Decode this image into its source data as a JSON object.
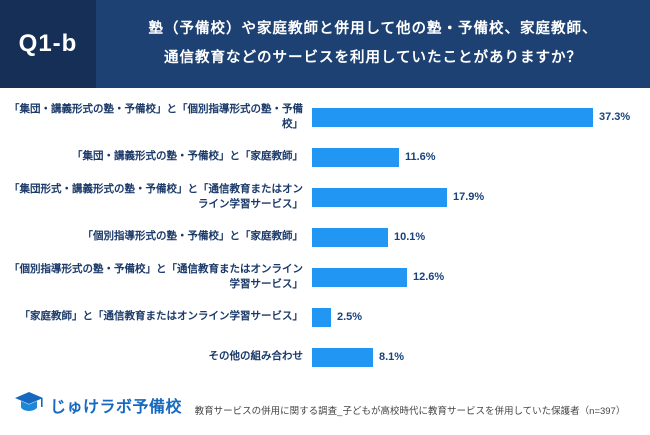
{
  "header": {
    "tag": "Q1-b",
    "question_line1": "塾（予備校）や家庭教師と併用して他の塾・予備校、家庭教師、",
    "question_line2": "通信教育などのサービスを利用していたことがありますか？"
  },
  "chart_data": {
    "type": "bar",
    "orientation": "horizontal",
    "title": "塾（予備校）や家庭教師と併用して他の塾・予備校、家庭教師、通信教育などのサービスを利用していたことがありますか？",
    "categories": [
      "「集団・講義形式の塾・予備校」と「個別指導形式の塾・予備校」",
      "「集団・講義形式の塾・予備校」と「家庭教師」",
      "「集団形式・講義形式の塾・予備校」と「通信教育またはオンライン学習サービス」",
      "「個別指導形式の塾・予備校」と「家庭教師」",
      "「個別指導形式の塾・予備校」と「通信教育またはオンライン学習サービス」",
      "「家庭教師」と「通信教育またはオンライン学習サービス」",
      "その他の組み合わせ"
    ],
    "values": [
      37.3,
      11.6,
      17.9,
      10.1,
      12.6,
      2.5,
      8.1
    ],
    "value_labels": [
      "37.3%",
      "11.6%",
      "17.9%",
      "10.1%",
      "12.6%",
      "2.5%",
      "8.1%"
    ],
    "xlim": [
      0,
      40
    ],
    "bar_color": "#2196f3",
    "grid": false,
    "legend": false
  },
  "footer": {
    "logo_text": "じゅけラボ予備校",
    "caption": "教育サービスの併用に関する調査_子どもが高校時代に教育サービスを併用していた保護者（n=397）"
  }
}
